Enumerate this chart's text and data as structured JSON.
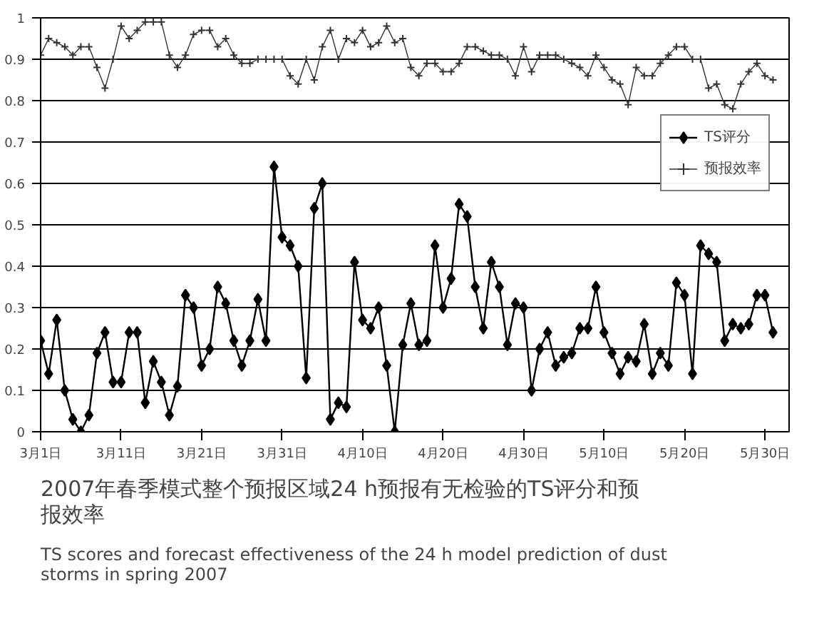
{
  "chart_data": {
    "type": "line",
    "title": "2007年春季模式整个预报区域24 h预报有无检验的TS评分和预报效率",
    "subtitle": "TS scores and forecast effectiveness of the 24 h model prediction of dust storms in spring 2007",
    "x": [
      "2007-03-01",
      "2007-03-02",
      "2007-03-03",
      "2007-03-04",
      "2007-03-05",
      "2007-03-06",
      "2007-03-07",
      "2007-03-08",
      "2007-03-09",
      "2007-03-10",
      "2007-03-11",
      "2007-03-12",
      "2007-03-13",
      "2007-03-14",
      "2007-03-15",
      "2007-03-16",
      "2007-03-17",
      "2007-03-18",
      "2007-03-19",
      "2007-03-20",
      "2007-03-21",
      "2007-03-22",
      "2007-03-23",
      "2007-03-24",
      "2007-03-25",
      "2007-03-26",
      "2007-03-27",
      "2007-03-28",
      "2007-03-29",
      "2007-03-30",
      "2007-03-31",
      "2007-04-01",
      "2007-04-02",
      "2007-04-03",
      "2007-04-04",
      "2007-04-05",
      "2007-04-06",
      "2007-04-07",
      "2007-04-08",
      "2007-04-09",
      "2007-04-10",
      "2007-04-11",
      "2007-04-12",
      "2007-04-13",
      "2007-04-14",
      "2007-04-15",
      "2007-04-16",
      "2007-04-17",
      "2007-04-18",
      "2007-04-19",
      "2007-04-20",
      "2007-04-21",
      "2007-04-22",
      "2007-04-23",
      "2007-04-24",
      "2007-04-25",
      "2007-04-26",
      "2007-04-27",
      "2007-04-28",
      "2007-04-29",
      "2007-04-30",
      "2007-05-01",
      "2007-05-02",
      "2007-05-03",
      "2007-05-04",
      "2007-05-05",
      "2007-05-06",
      "2007-05-07",
      "2007-05-08",
      "2007-05-09",
      "2007-05-10",
      "2007-05-11",
      "2007-05-12",
      "2007-05-13",
      "2007-05-14",
      "2007-05-15",
      "2007-05-16",
      "2007-05-17",
      "2007-05-18",
      "2007-05-19",
      "2007-05-20",
      "2007-05-21",
      "2007-05-22",
      "2007-05-23",
      "2007-05-24",
      "2007-05-25",
      "2007-05-26",
      "2007-05-27",
      "2007-05-28",
      "2007-05-29",
      "2007-05-30",
      "2007-05-31"
    ],
    "series": [
      {
        "name": "TS评分",
        "color": "#000000",
        "marker": "diamond",
        "values": [
          0.22,
          0.14,
          0.27,
          0.1,
          0.03,
          0.0,
          0.04,
          0.19,
          0.24,
          0.12,
          0.12,
          0.24,
          0.24,
          0.07,
          0.17,
          0.12,
          0.04,
          0.11,
          0.33,
          0.3,
          0.16,
          0.2,
          0.35,
          0.31,
          0.22,
          0.16,
          0.22,
          0.32,
          0.22,
          0.64,
          0.47,
          0.45,
          0.4,
          0.13,
          0.54,
          0.6,
          0.03,
          0.07,
          0.06,
          0.41,
          0.27,
          0.25,
          0.3,
          0.16,
          0.0,
          0.21,
          0.31,
          0.21,
          0.22,
          0.45,
          0.3,
          0.37,
          0.55,
          0.52,
          0.35,
          0.25,
          0.41,
          0.35,
          0.21,
          0.31,
          0.3,
          0.1,
          0.2,
          0.24,
          0.16,
          0.18,
          0.19,
          0.25,
          0.25,
          0.35,
          0.24,
          0.19,
          0.14,
          0.18,
          0.17,
          0.26,
          0.14,
          0.19,
          0.16,
          0.36,
          0.33,
          0.14,
          0.45,
          0.43,
          0.41,
          0.22,
          0.26,
          0.25,
          0.26,
          0.33,
          0.33,
          0.24
        ]
      },
      {
        "name": "预报效率",
        "color": "#333333",
        "marker": "cross",
        "values": [
          0.91,
          0.95,
          0.94,
          0.93,
          0.91,
          0.93,
          0.93,
          0.88,
          0.83,
          0.9,
          0.98,
          0.95,
          0.97,
          0.99,
          0.99,
          0.99,
          0.91,
          0.88,
          0.91,
          0.96,
          0.97,
          0.97,
          0.93,
          0.95,
          0.91,
          0.89,
          0.89,
          0.9,
          0.9,
          0.9,
          0.9,
          0.86,
          0.84,
          0.9,
          0.85,
          0.93,
          0.97,
          0.9,
          0.95,
          0.94,
          0.97,
          0.93,
          0.94,
          0.98,
          0.94,
          0.95,
          0.88,
          0.86,
          0.89,
          0.89,
          0.87,
          0.87,
          0.89,
          0.93,
          0.93,
          0.92,
          0.91,
          0.91,
          0.9,
          0.86,
          0.93,
          0.87,
          0.91,
          0.91,
          0.91,
          0.9,
          0.89,
          0.88,
          0.86,
          0.91,
          0.88,
          0.85,
          0.84,
          0.79,
          0.88,
          0.86,
          0.86,
          0.89,
          0.91,
          0.93,
          0.93,
          0.9,
          0.9,
          0.83,
          0.84,
          0.79,
          0.78,
          0.84,
          0.87,
          0.89,
          0.86,
          0.85
        ]
      }
    ],
    "xlim": [
      "2007-03-01",
      "2007-06-02"
    ],
    "xticks": [
      {
        "value": "2007-03-01",
        "label": "3月1日"
      },
      {
        "value": "2007-03-11",
        "label": "3月11日"
      },
      {
        "value": "2007-03-21",
        "label": "3月21日"
      },
      {
        "value": "2007-03-31",
        "label": "3月31日"
      },
      {
        "value": "2007-04-10",
        "label": "4月10日"
      },
      {
        "value": "2007-04-20",
        "label": "4月20日"
      },
      {
        "value": "2007-04-30",
        "label": "4月30日"
      },
      {
        "value": "2007-05-10",
        "label": "5月10日"
      },
      {
        "value": "2007-05-20",
        "label": "5月20日"
      },
      {
        "value": "2007-05-30",
        "label": "5月30日"
      }
    ],
    "ylim": [
      0,
      1
    ],
    "yticks": [
      0,
      0.1,
      0.2,
      0.3,
      0.4,
      0.5,
      0.6,
      0.7,
      0.8,
      0.9,
      1
    ],
    "grid": "y",
    "legend": "right",
    "line_style": "solid"
  }
}
